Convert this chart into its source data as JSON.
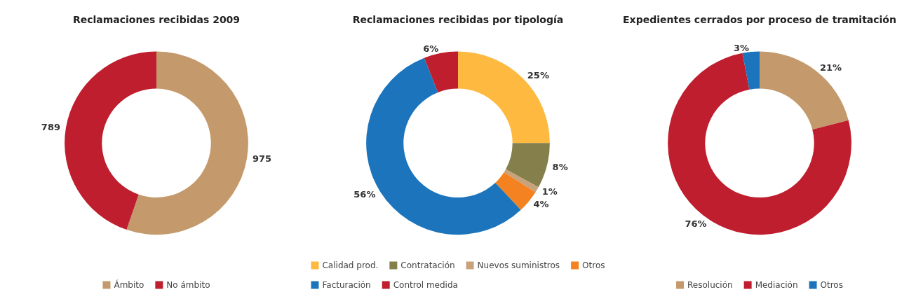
{
  "chart_data": [
    {
      "type": "donut",
      "title": "Reclamaciones recibidas 2009",
      "categories": [
        "Ámbito",
        "No ámbito"
      ],
      "values": [
        975,
        789
      ],
      "colors": [
        "#c49a6c",
        "#be1e2d"
      ],
      "data_labels": true,
      "legend": "bottom"
    },
    {
      "type": "donut",
      "title": "Reclamaciones recibidas por tipología",
      "categories": [
        "Calidad prod.",
        "Contratación",
        "Nuevos suministros",
        "Otros",
        "Facturación",
        "Control medida"
      ],
      "values": [
        25,
        8,
        1,
        4,
        56,
        6
      ],
      "value_labels": [
        "25%",
        "8%",
        "1%",
        "4%",
        "56%",
        "6%"
      ],
      "colors": [
        "#fdb940",
        "#857f4b",
        "#c8a27a",
        "#f58220",
        "#1c75bc",
        "#be1e2d"
      ],
      "legend": "bottom"
    },
    {
      "type": "donut",
      "title": "Expedientes cerrados por proceso de tramitación",
      "categories": [
        "Resolución",
        "Mediación",
        "Otros"
      ],
      "values": [
        21,
        76,
        3
      ],
      "value_labels": [
        "21%",
        "76%",
        "3%"
      ],
      "colors": [
        "#c49a6c",
        "#be1e2d",
        "#1c75bc"
      ],
      "legend": "bottom"
    }
  ]
}
